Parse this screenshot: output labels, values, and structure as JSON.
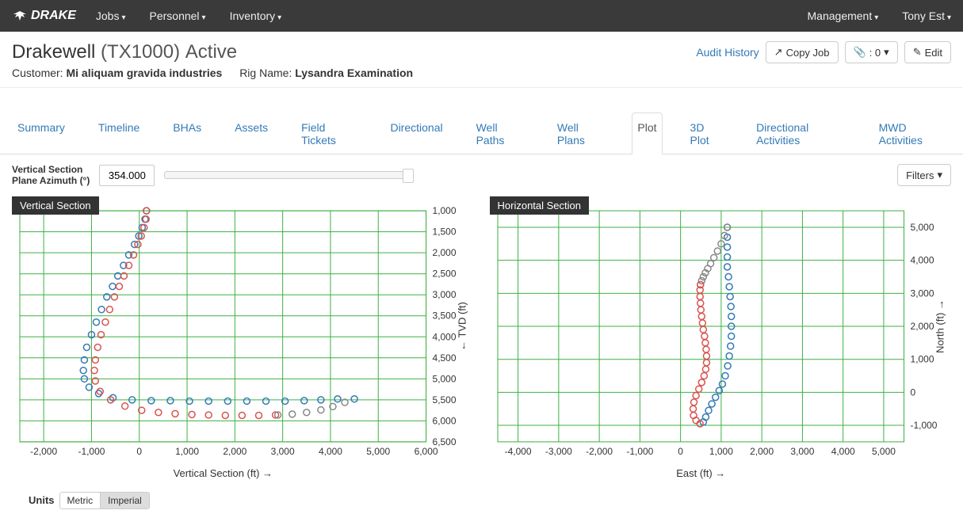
{
  "navbar": {
    "brand": "DRAKE",
    "left": [
      "Jobs",
      "Personnel",
      "Inventory"
    ],
    "right": [
      "Management",
      "Tony Est"
    ]
  },
  "header": {
    "title_main": "Drakewell",
    "title_paren": "(TX1000)",
    "title_status": "Active",
    "customer_label": "Customer:",
    "customer_value": "Mi aliquam gravida industries",
    "rig_label": "Rig Name:",
    "rig_value": "Lysandra Examination",
    "audit_link": "Audit History",
    "copy_btn": "Copy Job",
    "attach_btn": ": 0",
    "edit_btn": "Edit"
  },
  "tabs": [
    "Summary",
    "Timeline",
    "BHAs",
    "Assets",
    "Field Tickets",
    "Directional",
    "Well Paths",
    "Well Plans",
    "Plot",
    "3D Plot",
    "Directional Activities",
    "MWD Activities"
  ],
  "tabs_active_index": 8,
  "controls": {
    "label_line1": "Vertical Section",
    "label_line2": "Plane Azimuth (°)",
    "value": "354.000",
    "filters": "Filters"
  },
  "chart_common": {
    "grid_color": "#3cb043",
    "marker_radius": 4,
    "marker_stroke_width": 1.5,
    "axis_color": "#333",
    "tick_fontsize": 12,
    "label_fontsize": 13
  },
  "vertical_section": {
    "title": "Vertical Section",
    "xlabel": "Vertical Section (ft) →",
    "ylabel": "← TVD (ft)",
    "x_ticks": [
      -2000,
      -1000,
      0,
      1000,
      2000,
      3000,
      4000,
      5000,
      6000
    ],
    "y_ticks": [
      1000,
      1500,
      2000,
      2500,
      3000,
      3500,
      4000,
      4500,
      5000,
      5500,
      6000,
      6500
    ],
    "xlim": [
      -2500,
      6000
    ],
    "ylim": [
      1000,
      6500
    ],
    "series": [
      {
        "color": "#337ab7",
        "points": [
          [
            150,
            1000
          ],
          [
            120,
            1200
          ],
          [
            60,
            1400
          ],
          [
            -10,
            1600
          ],
          [
            -100,
            1800
          ],
          [
            -220,
            2050
          ],
          [
            -330,
            2300
          ],
          [
            -450,
            2550
          ],
          [
            -560,
            2800
          ],
          [
            -680,
            3050
          ],
          [
            -790,
            3350
          ],
          [
            -900,
            3650
          ],
          [
            -1000,
            3950
          ],
          [
            -1100,
            4250
          ],
          [
            -1150,
            4550
          ],
          [
            -1170,
            4800
          ],
          [
            -1150,
            5000
          ],
          [
            -1050,
            5200
          ],
          [
            -850,
            5350
          ],
          [
            -550,
            5450
          ],
          [
            -150,
            5500
          ],
          [
            250,
            5520
          ],
          [
            650,
            5520
          ],
          [
            1050,
            5530
          ],
          [
            1450,
            5530
          ],
          [
            1850,
            5530
          ],
          [
            2250,
            5530
          ],
          [
            2650,
            5530
          ],
          [
            3050,
            5530
          ],
          [
            3450,
            5520
          ],
          [
            3800,
            5500
          ],
          [
            4150,
            5480
          ],
          [
            4500,
            5480
          ]
        ]
      },
      {
        "color": "#d9534f",
        "points": [
          [
            150,
            1000
          ],
          [
            140,
            1200
          ],
          [
            100,
            1400
          ],
          [
            40,
            1600
          ],
          [
            -30,
            1800
          ],
          [
            -120,
            2050
          ],
          [
            -220,
            2300
          ],
          [
            -320,
            2550
          ],
          [
            -420,
            2800
          ],
          [
            -520,
            3050
          ],
          [
            -620,
            3350
          ],
          [
            -710,
            3650
          ],
          [
            -800,
            3950
          ],
          [
            -870,
            4250
          ],
          [
            -920,
            4550
          ],
          [
            -940,
            4800
          ],
          [
            -920,
            5050
          ],
          [
            -820,
            5300
          ],
          [
            -600,
            5500
          ],
          [
            -300,
            5650
          ],
          [
            50,
            5750
          ],
          [
            400,
            5800
          ],
          [
            750,
            5830
          ],
          [
            1100,
            5850
          ],
          [
            1450,
            5860
          ],
          [
            1800,
            5870
          ],
          [
            2150,
            5870
          ],
          [
            2500,
            5870
          ],
          [
            2850,
            5860
          ]
        ]
      },
      {
        "color": "#888888",
        "points": [
          [
            2900,
            5860
          ],
          [
            3200,
            5840
          ],
          [
            3500,
            5800
          ],
          [
            3800,
            5740
          ],
          [
            4050,
            5660
          ],
          [
            4300,
            5560
          ]
        ]
      }
    ]
  },
  "horizontal_section": {
    "title": "Horizontal Section",
    "xlabel": "East (ft) →",
    "ylabel": "North (ft) →",
    "x_ticks": [
      -4000,
      -3000,
      -2000,
      -1000,
      0,
      1000,
      2000,
      3000,
      4000,
      5000
    ],
    "y_ticks": [
      -1000,
      0,
      1000,
      2000,
      3000,
      4000,
      5000
    ],
    "xlim": [
      -4500,
      5500
    ],
    "ylim": [
      -1500,
      5500
    ],
    "series": [
      {
        "color": "#337ab7",
        "points": [
          [
            1150,
            5000
          ],
          [
            1150,
            4700
          ],
          [
            1150,
            4400
          ],
          [
            1150,
            4100
          ],
          [
            1150,
            3800
          ],
          [
            1180,
            3500
          ],
          [
            1200,
            3200
          ],
          [
            1220,
            2900
          ],
          [
            1240,
            2600
          ],
          [
            1250,
            2300
          ],
          [
            1250,
            2000
          ],
          [
            1250,
            1700
          ],
          [
            1230,
            1400
          ],
          [
            1200,
            1100
          ],
          [
            1160,
            800
          ],
          [
            1100,
            500
          ],
          [
            1030,
            250
          ],
          [
            950,
            50
          ],
          [
            860,
            -150
          ],
          [
            770,
            -350
          ],
          [
            690,
            -550
          ],
          [
            620,
            -750
          ],
          [
            560,
            -900
          ]
        ]
      },
      {
        "color": "#888888",
        "points": [
          [
            1150,
            5000
          ],
          [
            1080,
            4750
          ],
          [
            1000,
            4500
          ],
          [
            910,
            4280
          ],
          [
            820,
            4080
          ],
          [
            740,
            3900
          ],
          [
            670,
            3750
          ],
          [
            610,
            3620
          ],
          [
            560,
            3500
          ],
          [
            520,
            3380
          ],
          [
            490,
            3260
          ]
        ]
      },
      {
        "color": "#d9534f",
        "points": [
          [
            490,
            3260
          ],
          [
            480,
            3100
          ],
          [
            480,
            2900
          ],
          [
            490,
            2700
          ],
          [
            500,
            2500
          ],
          [
            520,
            2300
          ],
          [
            540,
            2100
          ],
          [
            560,
            1900
          ],
          [
            590,
            1700
          ],
          [
            610,
            1500
          ],
          [
            630,
            1300
          ],
          [
            640,
            1100
          ],
          [
            640,
            900
          ],
          [
            620,
            700
          ],
          [
            580,
            500
          ],
          [
            520,
            300
          ],
          [
            450,
            100
          ],
          [
            380,
            -100
          ],
          [
            330,
            -300
          ],
          [
            310,
            -500
          ],
          [
            320,
            -700
          ],
          [
            380,
            -850
          ],
          [
            480,
            -950
          ]
        ]
      }
    ]
  },
  "units": {
    "label": "Units",
    "metric": "Metric",
    "imperial": "Imperial",
    "active": "imperial"
  }
}
